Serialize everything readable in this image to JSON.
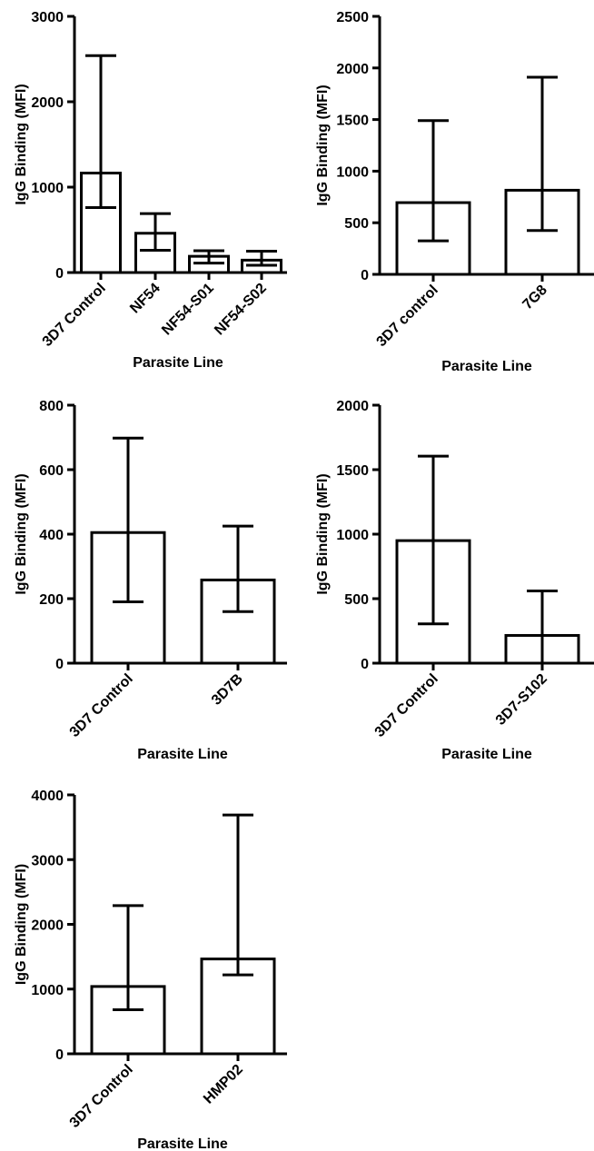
{
  "chart_data": [
    {
      "type": "bar",
      "categories": [
        "3D7 Control",
        "NF54",
        "NF54-S01",
        "NF54-S02"
      ],
      "values": [
        1165,
        460,
        190,
        145
      ],
      "error_low": [
        760,
        260,
        110,
        85
      ],
      "error_high": [
        2540,
        690,
        255,
        250
      ],
      "ylabel": "IgG Binding (MFI)",
      "xlabel": "Parasite Line",
      "ylim": [
        0,
        3000
      ],
      "yticks": [
        "0",
        "1000",
        "2000",
        "3000"
      ],
      "grid": false
    },
    {
      "type": "bar",
      "categories": [
        "3D7 control",
        "7G8"
      ],
      "values": [
        695,
        815
      ],
      "error_low": [
        325,
        425
      ],
      "error_high": [
        1490,
        1910
      ],
      "ylabel": "IgG Binding (MFI)",
      "xlabel": "Parasite Line",
      "ylim": [
        0,
        2500
      ],
      "yticks": [
        "0",
        "500",
        "1000",
        "1500",
        "2000",
        "2500"
      ],
      "grid": false
    },
    {
      "type": "bar",
      "categories": [
        "3D7 Control",
        "3D7B"
      ],
      "values": [
        405,
        258
      ],
      "error_low": [
        190,
        160
      ],
      "error_high": [
        698,
        425
      ],
      "ylabel": "IgG Binding (MFI)",
      "xlabel": "Parasite Line",
      "ylim": [
        0,
        800
      ],
      "yticks": [
        "0",
        "200",
        "400",
        "600",
        "800"
      ],
      "grid": false
    },
    {
      "type": "bar",
      "categories": [
        "3D7 Control",
        "3D7-S102"
      ],
      "values": [
        950,
        215
      ],
      "error_low": [
        305,
        0
      ],
      "error_high": [
        1605,
        560
      ],
      "ylabel": "IgG Binding (MFI)",
      "xlabel": "Parasite Line",
      "ylim": [
        0,
        2000
      ],
      "yticks": [
        "0",
        "500",
        "1000",
        "1500",
        "2000"
      ],
      "grid": false
    },
    {
      "type": "bar",
      "categories": [
        "3D7 Control",
        "HMP02"
      ],
      "values": [
        1040,
        1465
      ],
      "error_low": [
        680,
        1220
      ],
      "error_high": [
        2290,
        3690
      ],
      "ylabel": "IgG Binding (MFI)",
      "xlabel": "Parasite Line",
      "ylim": [
        0,
        4000
      ],
      "yticks": [
        "0",
        "1000",
        "2000",
        "3000",
        "4000"
      ],
      "grid": false
    }
  ]
}
